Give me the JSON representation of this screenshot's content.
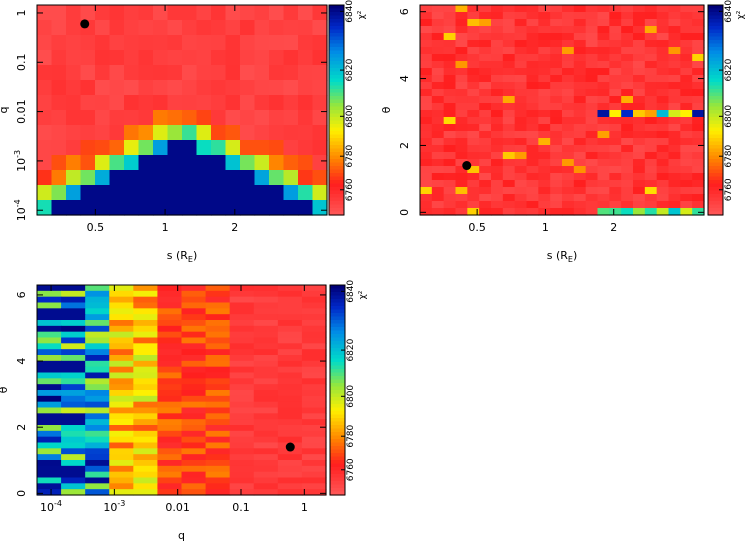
{
  "chart_data": [
    {
      "type": "heatmap",
      "xlabel": "s (R",
      "xlabel_sub": "E",
      "xlabel_close": ")",
      "ylabel": "q",
      "x_scale": "log",
      "y_scale": "log",
      "xlim": [
        0.28,
        5.0
      ],
      "ylim": [
        8e-05,
        1.45
      ],
      "xticks": [
        {
          "v": 0.5,
          "label": "0.5"
        },
        {
          "v": 1,
          "label": "1"
        },
        {
          "v": 2,
          "label": "2"
        }
      ],
      "yticks": [
        {
          "v": 0.0001,
          "base": "10",
          "exp": "-4"
        },
        {
          "v": 0.001,
          "base": "10",
          "exp": "-3"
        },
        {
          "v": 0.01,
          "label": "0.01"
        },
        {
          "v": 0.1,
          "label": "0.1"
        },
        {
          "v": 1,
          "label": "1"
        }
      ],
      "grid_cols": 20,
      "grid_rows": 14,
      "pattern": "caustic-v",
      "best_fit": {
        "s": 0.45,
        "q": 0.6
      },
      "colorbar": {
        "label": "χ²",
        "ticks": [
          "6760",
          "6780",
          "6800",
          "6820",
          "6840"
        ]
      }
    },
    {
      "type": "heatmap",
      "xlabel": "s (R",
      "xlabel_sub": "E",
      "xlabel_close": ")",
      "ylabel": "θ",
      "x_scale": "log",
      "y_scale": "linear",
      "xlim": [
        0.28,
        5.0
      ],
      "ylim": [
        -0.08,
        6.2
      ],
      "xticks": [
        {
          "v": 0.5,
          "label": "0.5"
        },
        {
          "v": 1,
          "label": "1"
        },
        {
          "v": 2,
          "label": "2"
        }
      ],
      "yticks": [
        {
          "v": 0,
          "label": "0"
        },
        {
          "v": 2,
          "label": "2"
        },
        {
          "v": 4,
          "label": "4"
        },
        {
          "v": 6,
          "label": "6"
        }
      ],
      "grid_cols": 24,
      "grid_rows": 30,
      "pattern": "mostly-good",
      "best_fit": {
        "s": 0.45,
        "theta": 1.4
      },
      "colorbar": {
        "label": "χ²",
        "ticks": [
          "6760",
          "6780",
          "6800",
          "6820",
          "6840"
        ]
      }
    },
    {
      "type": "heatmap",
      "xlabel": "q",
      "ylabel": "θ",
      "x_scale": "log",
      "y_scale": "linear",
      "xlim": [
        6e-05,
        2.2
      ],
      "ylim": [
        -0.05,
        6.3
      ],
      "xticks": [
        {
          "v": 0.0001,
          "base": "10",
          "exp": "-4"
        },
        {
          "v": 0.001,
          "base": "10",
          "exp": "-3"
        },
        {
          "v": 0.01,
          "label": "0.01"
        },
        {
          "v": 0.1,
          "label": "0.1"
        },
        {
          "v": 1,
          "label": "1"
        }
      ],
      "yticks": [
        {
          "v": 0,
          "label": "0"
        },
        {
          "v": 2,
          "label": "2"
        },
        {
          "v": 4,
          "label": "4"
        },
        {
          "v": 6,
          "label": "6"
        }
      ],
      "grid_cols": 12,
      "grid_rows": 36,
      "pattern": "q-gradient",
      "best_fit": {
        "q": 0.6,
        "theta": 1.4
      },
      "colorbar": {
        "label": "χ²",
        "ticks": [
          "6760",
          "6780",
          "6800",
          "6820",
          "6840"
        ]
      }
    }
  ]
}
